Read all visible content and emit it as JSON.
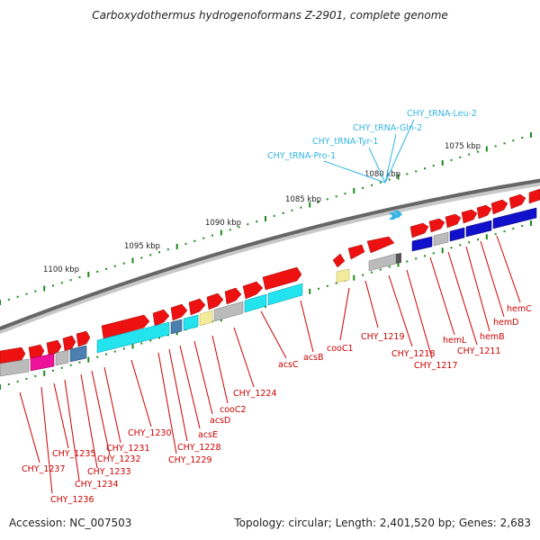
{
  "title": "Carboxydothermus hydrogenoformans Z-2901, complete genome",
  "footer": {
    "accession": "Accession: NC_007503",
    "summary": "Topology: circular; Length: 2,401,520 bp; Genes: 2,683"
  },
  "colors": {
    "forward": "#ee1111",
    "reverse_blue": "#1111cc",
    "cyan": "#22e3ee",
    "gray": "#bbbbbb",
    "pink": "#ee1199",
    "tRNA": "#33b5e5",
    "label": "#cc0000",
    "trna_label": "#33b5e5",
    "tick": "#1a8a1a"
  },
  "scale_labels": [
    "1100 kbp",
    "1095 kbp",
    "1090 kbp",
    "1085 kbp",
    "1080 kbp",
    "1075 kbp"
  ],
  "trna_labels": [
    "CHY_tRNA-Leu-2",
    "CHY_tRNA-Gln-2",
    "CHY_tRNA-Tyr-1",
    "CHY_tRNA-Pro-1"
  ],
  "gene_labels": [
    "hemC",
    "hemD",
    "hemB",
    "CHY_1211",
    "hemL",
    "CHY_1217",
    "CHY_1218",
    "CHY_1219",
    "cooC1",
    "acsB",
    "acsC",
    "CHY_1224",
    "cooC2",
    "acsD",
    "acsE",
    "CHY_1228",
    "CHY_1229",
    "CHY_1230",
    "CHY_1231",
    "CHY_1232",
    "CHY_1233",
    "CHY_1234",
    "CHY_1235",
    "CHY_1236",
    "CHY_1237"
  ]
}
